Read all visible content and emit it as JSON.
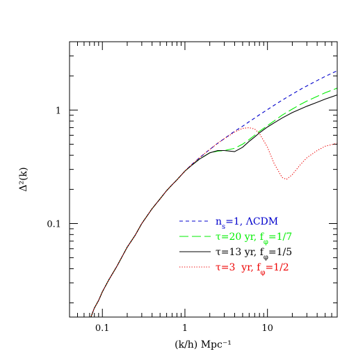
{
  "chart_data": {
    "type": "line",
    "title": "",
    "xlabel": "(k/h) Mpc⁻¹",
    "ylabel": "Δ²(k)",
    "xscale": "log",
    "yscale": "log",
    "xlim": [
      0.04,
      70
    ],
    "ylim": [
      0.015,
      4
    ],
    "grid": false,
    "legend_position": "bottom-right",
    "x_ticks": [
      {
        "value": 0.1,
        "label": "0.1"
      },
      {
        "value": 1,
        "label": "1"
      },
      {
        "value": 10,
        "label": "10"
      }
    ],
    "y_ticks": [
      {
        "value": 0.1,
        "label": "0.1"
      },
      {
        "value": 1,
        "label": "1"
      }
    ],
    "series": [
      {
        "name": "n_s=1, ΛCDM",
        "color": "#0000cc",
        "dash": "dashed",
        "x": [
          0.07,
          0.08,
          0.09,
          0.1,
          0.12,
          0.15,
          0.2,
          0.25,
          0.3,
          0.4,
          0.5,
          0.6,
          0.7,
          0.8,
          1.0,
          1.2,
          1.5,
          2,
          2.5,
          3,
          4,
          5,
          6,
          7,
          8,
          10,
          12,
          15,
          20,
          25,
          30,
          40,
          50,
          70
        ],
        "y": [
          0.014,
          0.018,
          0.021,
          0.025,
          0.032,
          0.042,
          0.062,
          0.079,
          0.1,
          0.135,
          0.165,
          0.195,
          0.22,
          0.243,
          0.29,
          0.33,
          0.38,
          0.45,
          0.51,
          0.56,
          0.65,
          0.72,
          0.79,
          0.85,
          0.91,
          1.01,
          1.1,
          1.22,
          1.38,
          1.52,
          1.63,
          1.82,
          1.98,
          2.22
        ]
      },
      {
        "name": "τ=20 yr, f_φ=1/7",
        "color": "#00ee00",
        "dash": "longdash",
        "x": [
          0.07,
          0.08,
          0.09,
          0.1,
          0.12,
          0.15,
          0.2,
          0.25,
          0.3,
          0.4,
          0.5,
          0.6,
          0.7,
          0.8,
          1.0,
          1.2,
          1.5,
          2,
          2.5,
          3,
          4,
          5,
          6,
          7,
          8,
          10,
          12,
          15,
          20,
          25,
          30,
          40,
          50,
          70
        ],
        "y": [
          0.014,
          0.018,
          0.021,
          0.025,
          0.032,
          0.042,
          0.062,
          0.079,
          0.1,
          0.135,
          0.165,
          0.195,
          0.22,
          0.243,
          0.29,
          0.325,
          0.37,
          0.42,
          0.435,
          0.44,
          0.46,
          0.5,
          0.55,
          0.6,
          0.65,
          0.73,
          0.8,
          0.9,
          1.02,
          1.12,
          1.2,
          1.32,
          1.42,
          1.56
        ]
      },
      {
        "name": "τ=13 yr, f_φ=1/5",
        "color": "#000000",
        "dash": "solid",
        "x": [
          0.07,
          0.08,
          0.09,
          0.1,
          0.12,
          0.15,
          0.2,
          0.25,
          0.3,
          0.4,
          0.5,
          0.6,
          0.7,
          0.8,
          1.0,
          1.2,
          1.5,
          2,
          2.5,
          3,
          4,
          5,
          6,
          7,
          8,
          10,
          12,
          15,
          20,
          25,
          30,
          40,
          50,
          70
        ],
        "y": [
          0.014,
          0.018,
          0.021,
          0.025,
          0.032,
          0.042,
          0.062,
          0.079,
          0.1,
          0.135,
          0.165,
          0.195,
          0.22,
          0.243,
          0.29,
          0.325,
          0.37,
          0.42,
          0.44,
          0.44,
          0.43,
          0.47,
          0.53,
          0.58,
          0.63,
          0.71,
          0.77,
          0.85,
          0.95,
          1.02,
          1.08,
          1.17,
          1.25,
          1.36
        ]
      },
      {
        "name": "τ=3  yr, f_φ=1/2",
        "color": "#ee0000",
        "dash": "dotted",
        "x": [
          0.07,
          0.08,
          0.09,
          0.1,
          0.12,
          0.15,
          0.2,
          0.25,
          0.3,
          0.4,
          0.5,
          0.6,
          0.7,
          0.8,
          1.0,
          1.2,
          1.5,
          2,
          2.5,
          3,
          4,
          5,
          6,
          7,
          8,
          10,
          12,
          15,
          17,
          20,
          25,
          30,
          40,
          50,
          70
        ],
        "y": [
          0.014,
          0.018,
          0.021,
          0.025,
          0.032,
          0.042,
          0.062,
          0.079,
          0.1,
          0.135,
          0.165,
          0.195,
          0.22,
          0.243,
          0.29,
          0.33,
          0.38,
          0.45,
          0.51,
          0.56,
          0.64,
          0.69,
          0.7,
          0.68,
          0.62,
          0.47,
          0.34,
          0.255,
          0.245,
          0.27,
          0.33,
          0.38,
          0.44,
          0.48,
          0.51
        ]
      }
    ]
  }
}
